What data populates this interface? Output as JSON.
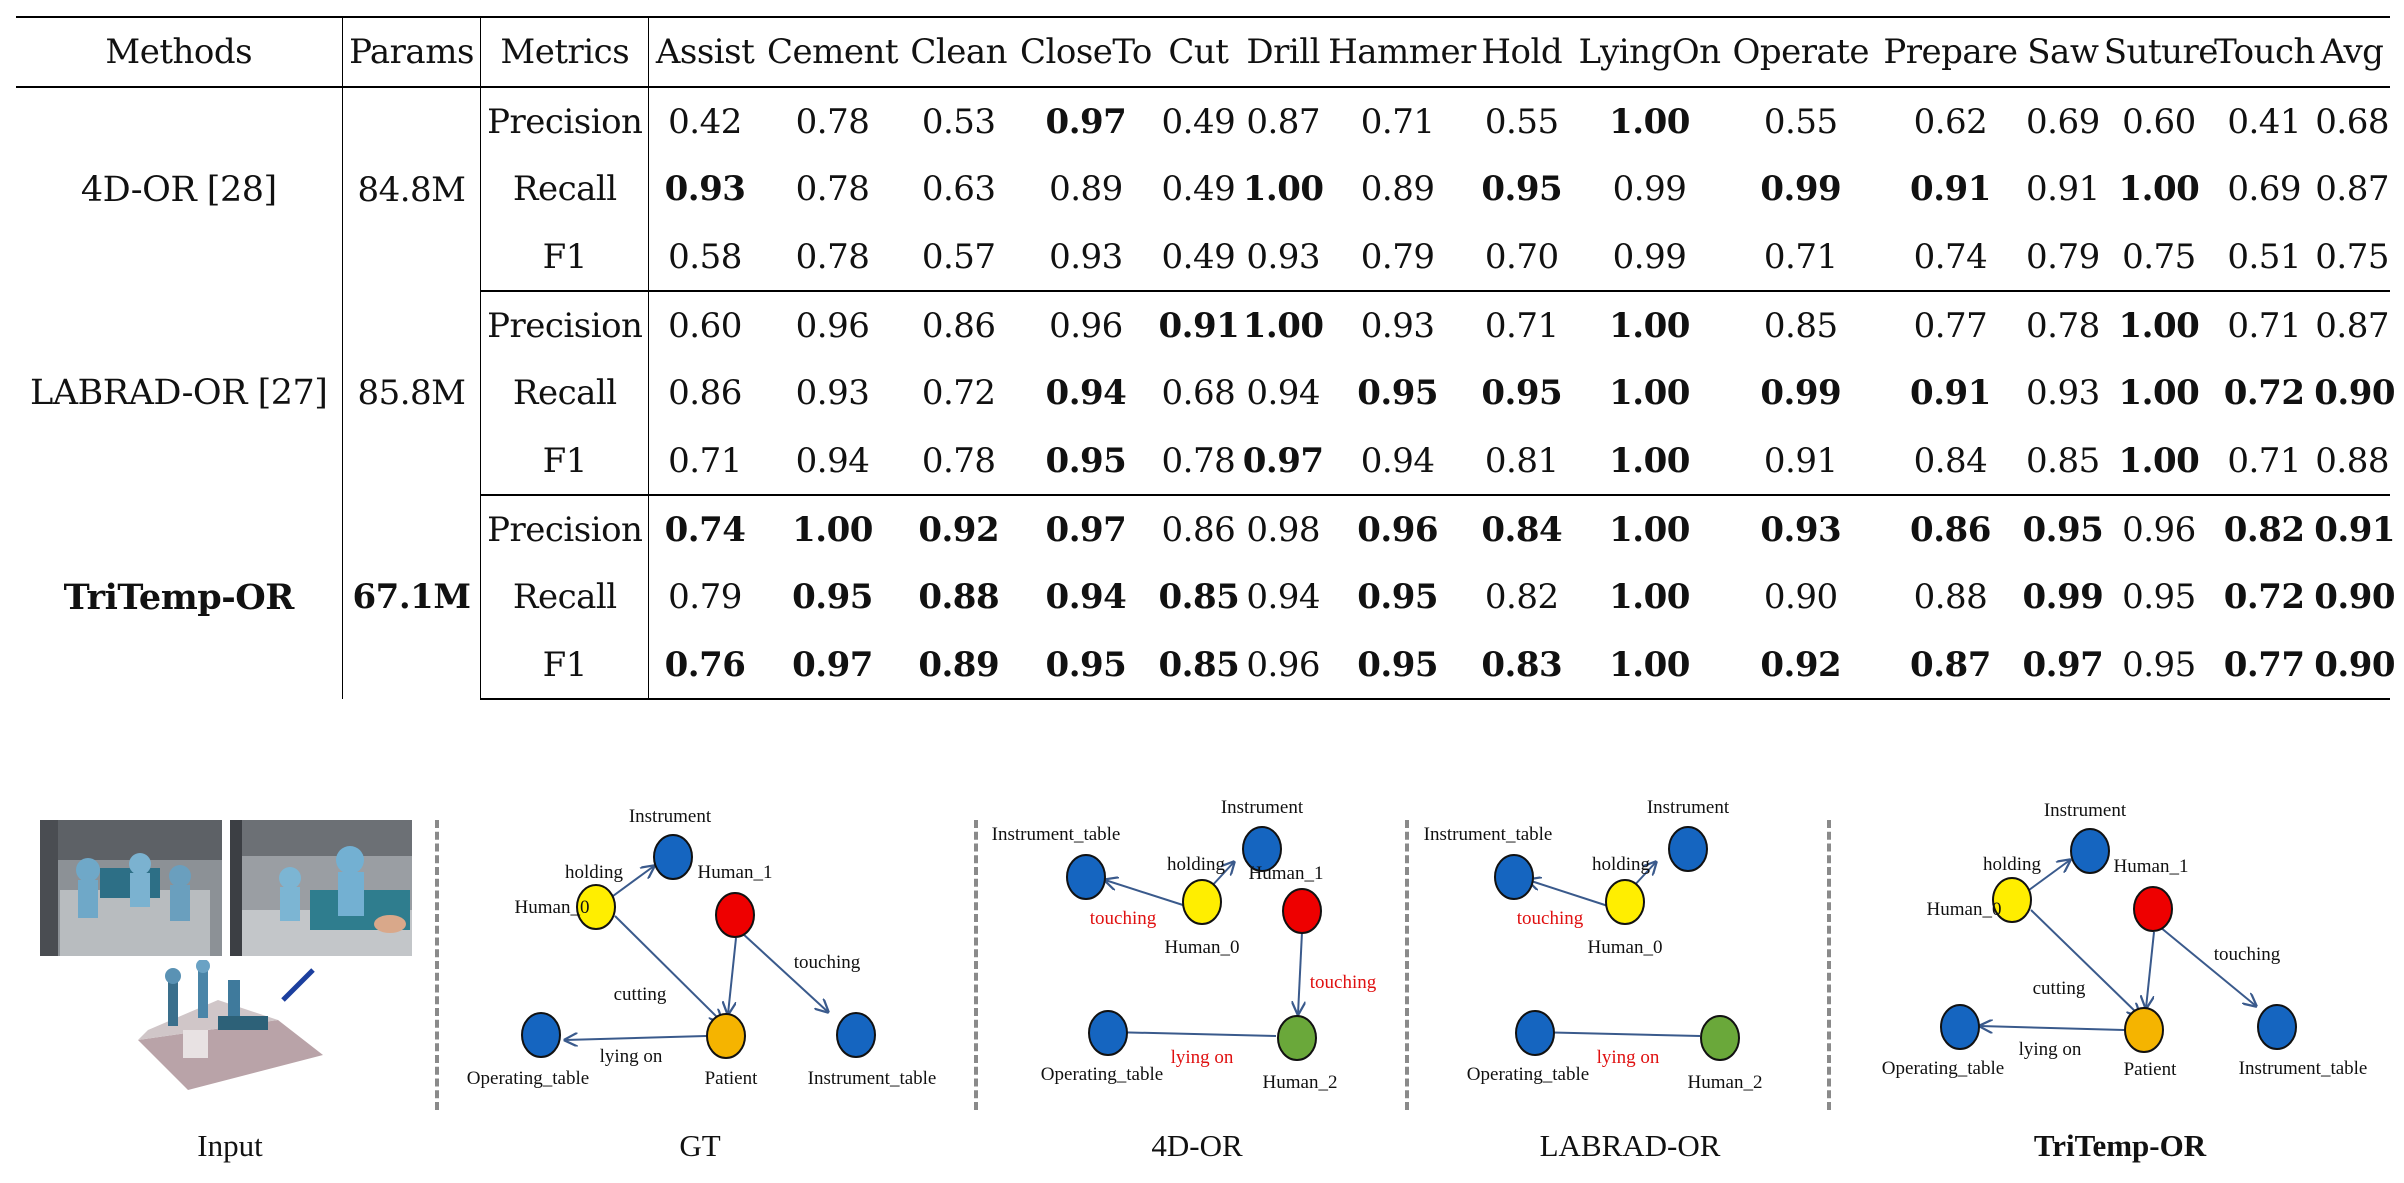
{
  "table": {
    "headers": [
      "Methods",
      "Params",
      "Metrics",
      "Assist",
      "Cement",
      "Clean",
      "CloseTo",
      "Cut",
      "Drill",
      "Hammer",
      "Hold",
      "LyingOn",
      "Operate",
      "Prepare",
      "Saw",
      "Suture",
      "Touch",
      "Avg"
    ],
    "groups": [
      {
        "method": "4D-OR [28]",
        "params": "84.8M",
        "best": false,
        "rows": [
          {
            "metric": "Precision",
            "values": [
              "0.42",
              "0.78",
              "0.53",
              "0.97",
              "0.49",
              "0.87",
              "0.71",
              "0.55",
              "1.00",
              "0.55",
              "0.62",
              "0.69",
              "0.60",
              "0.41",
              "0.68"
            ],
            "bold": [
              3,
              8
            ]
          },
          {
            "metric": "Recall",
            "values": [
              "0.93",
              "0.78",
              "0.63",
              "0.89",
              "0.49",
              "1.00",
              "0.89",
              "0.95",
              "0.99",
              "0.99",
              "0.91",
              "0.91",
              "1.00",
              "0.69",
              "0.87"
            ],
            "bold": [
              0,
              5,
              7,
              9,
              10,
              12
            ]
          },
          {
            "metric": "F1",
            "values": [
              "0.58",
              "0.78",
              "0.57",
              "0.93",
              "0.49",
              "0.93",
              "0.79",
              "0.70",
              "0.99",
              "0.71",
              "0.74",
              "0.79",
              "0.75",
              "0.51",
              "0.75"
            ],
            "bold": []
          }
        ]
      },
      {
        "method": "LABRAD-OR [27]",
        "params": "85.8M",
        "best": false,
        "rows": [
          {
            "metric": "Precision",
            "values": [
              "0.60",
              "0.96",
              "0.86",
              "0.96",
              "0.91",
              "1.00",
              "0.93",
              "0.71",
              "1.00",
              "0.85",
              "0.77",
              "0.78",
              "1.00",
              "0.71",
              "0.87"
            ],
            "bold": [
              4,
              5,
              8,
              12
            ]
          },
          {
            "metric": "Recall",
            "values": [
              "0.86",
              "0.93",
              "0.72",
              "0.94",
              "0.68",
              "0.94",
              "0.95",
              "0.95",
              "1.00",
              "0.99",
              "0.91",
              "0.93",
              "1.00",
              "0.72",
              "0.90"
            ],
            "bold": [
              3,
              6,
              7,
              8,
              9,
              10,
              12,
              13,
              14
            ]
          },
          {
            "metric": "F1",
            "values": [
              "0.71",
              "0.94",
              "0.78",
              "0.95",
              "0.78",
              "0.97",
              "0.94",
              "0.81",
              "1.00",
              "0.91",
              "0.84",
              "0.85",
              "1.00",
              "0.71",
              "0.88"
            ],
            "bold": [
              3,
              5,
              8,
              12
            ]
          }
        ]
      },
      {
        "method": "TriTemp-OR",
        "params": "67.1M",
        "best": true,
        "rows": [
          {
            "metric": "Precision",
            "values": [
              "0.74",
              "1.00",
              "0.92",
              "0.97",
              "0.86",
              "0.98",
              "0.96",
              "0.84",
              "1.00",
              "0.93",
              "0.86",
              "0.95",
              "0.96",
              "0.82",
              "0.91"
            ],
            "bold": [
              0,
              1,
              2,
              3,
              6,
              7,
              8,
              9,
              10,
              11,
              13,
              14
            ]
          },
          {
            "metric": "Recall",
            "values": [
              "0.79",
              "0.95",
              "0.88",
              "0.94",
              "0.85",
              "0.94",
              "0.95",
              "0.82",
              "1.00",
              "0.90",
              "0.88",
              "0.99",
              "0.95",
              "0.72",
              "0.90"
            ],
            "bold": [
              1,
              2,
              3,
              4,
              6,
              8,
              11,
              13,
              14
            ]
          },
          {
            "metric": "F1",
            "values": [
              "0.76",
              "0.97",
              "0.89",
              "0.95",
              "0.85",
              "0.96",
              "0.95",
              "0.83",
              "1.00",
              "0.92",
              "0.87",
              "0.97",
              "0.95",
              "0.77",
              "0.90"
            ],
            "bold": [
              0,
              1,
              2,
              3,
              4,
              6,
              7,
              8,
              9,
              10,
              11,
              13,
              14
            ]
          }
        ]
      }
    ]
  },
  "figure": {
    "captions": {
      "input": "Input",
      "gt": "GT",
      "fourdor": "4D-OR",
      "labrad": "LABRAD-OR",
      "tritemp": "TriTemp-OR"
    },
    "colors": {
      "blue": "#1565c0",
      "yellow": "#ffee00",
      "red": "#ee0000",
      "orange": "#f5b400",
      "green": "#6aa83a",
      "edge": "#3a5a8c",
      "error_label": "#e01010"
    },
    "gt": {
      "nodes": {
        "instrument": "Instrument",
        "human0": "Human_0",
        "human1": "Human_1",
        "operating_table": "Operating_table",
        "patient": "Patient",
        "instrument_table": "Instrument_table"
      },
      "edges": {
        "holding": "holding",
        "cutting": "cutting",
        "touching": "touching",
        "lying_on": "lying on"
      }
    },
    "fourdor": {
      "nodes": {
        "instrument_table": "Instrument_table",
        "instrument": "Instrument",
        "human1": "Human_1",
        "human0": "Human_0",
        "operating_table": "Operating_table",
        "human2": "Human_2"
      },
      "edges": {
        "holding": "holding",
        "touching_a": "touching",
        "touching_b": "touching",
        "lying_on": "lying on"
      }
    },
    "labrad": {
      "nodes": {
        "instrument_table": "Instrument_table",
        "instrument": "Instrument",
        "human0": "Human_0",
        "operating_table": "Operating_table",
        "human2": "Human_2"
      },
      "edges": {
        "holding": "holding",
        "touching": "touching",
        "lying_on": "lying on"
      }
    },
    "tritemp": {
      "nodes": {
        "instrument": "Instrument",
        "human0": "Human_0",
        "human1": "Human_1",
        "operating_table": "Operating_table",
        "patient": "Patient",
        "instrument_table": "Instrument_table"
      },
      "edges": {
        "holding": "holding",
        "cutting": "cutting",
        "touching": "touching",
        "lying_on": "lying on"
      }
    }
  }
}
